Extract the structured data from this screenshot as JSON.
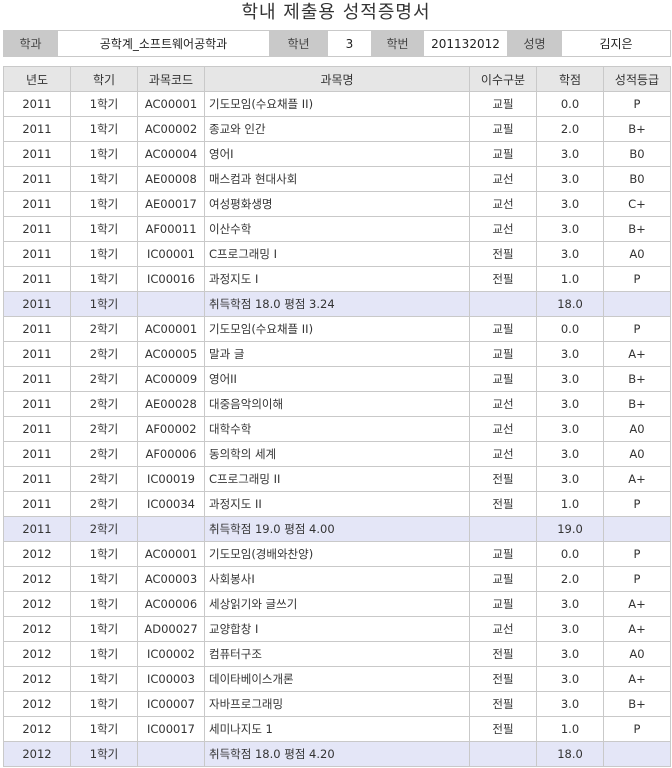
{
  "title": "학내 제출용 성적증명서",
  "info": {
    "dept_label": "학과",
    "dept": "공학계_소프트웨어공학과",
    "year_label": "학년",
    "year": "3",
    "id_label": "학번",
    "id": "201132012",
    "name_label": "성명",
    "name": "김지은"
  },
  "headers": [
    "년도",
    "학기",
    "과목코드",
    "과목명",
    "이수구분",
    "학점",
    "성적등급"
  ],
  "rows": [
    {
      "year": "2011",
      "term": "1학기",
      "code": "AC00001",
      "name": "기도모임(수요채플 II)",
      "type": "교필",
      "credit": "0.0",
      "grade": "P"
    },
    {
      "year": "2011",
      "term": "1학기",
      "code": "AC00002",
      "name": "종교와 인간",
      "type": "교필",
      "credit": "2.0",
      "grade": "B+"
    },
    {
      "year": "2011",
      "term": "1학기",
      "code": "AC00004",
      "name": "영어I",
      "type": "교필",
      "credit": "3.0",
      "grade": "B0"
    },
    {
      "year": "2011",
      "term": "1학기",
      "code": "AE00008",
      "name": "매스컴과 현대사회",
      "type": "교선",
      "credit": "3.0",
      "grade": "B0"
    },
    {
      "year": "2011",
      "term": "1학기",
      "code": "AE00017",
      "name": "여성평화생명",
      "type": "교선",
      "credit": "3.0",
      "grade": "C+"
    },
    {
      "year": "2011",
      "term": "1학기",
      "code": "AF00011",
      "name": "이산수학",
      "type": "교선",
      "credit": "3.0",
      "grade": "B+"
    },
    {
      "year": "2011",
      "term": "1학기",
      "code": "IC00001",
      "name": "C프로그래밍 I",
      "type": "전필",
      "credit": "3.0",
      "grade": "A0"
    },
    {
      "year": "2011",
      "term": "1학기",
      "code": "IC00016",
      "name": "과정지도 I",
      "type": "전필",
      "credit": "1.0",
      "grade": "P"
    },
    {
      "summary": true,
      "year": "2011",
      "term": "1학기",
      "code": "",
      "name": "취득학점 18.0 평점 3.24",
      "type": "",
      "credit": "18.0",
      "grade": ""
    },
    {
      "year": "2011",
      "term": "2학기",
      "code": "AC00001",
      "name": "기도모임(수요채플 II)",
      "type": "교필",
      "credit": "0.0",
      "grade": "P"
    },
    {
      "year": "2011",
      "term": "2학기",
      "code": "AC00005",
      "name": "말과 글",
      "type": "교필",
      "credit": "3.0",
      "grade": "A+"
    },
    {
      "year": "2011",
      "term": "2학기",
      "code": "AC00009",
      "name": "영어II",
      "type": "교필",
      "credit": "3.0",
      "grade": "B+"
    },
    {
      "year": "2011",
      "term": "2학기",
      "code": "AE00028",
      "name": "대중음악의이해",
      "type": "교선",
      "credit": "3.0",
      "grade": "B+"
    },
    {
      "year": "2011",
      "term": "2학기",
      "code": "AF00002",
      "name": "대학수학",
      "type": "교선",
      "credit": "3.0",
      "grade": "A0"
    },
    {
      "year": "2011",
      "term": "2학기",
      "code": "AF00006",
      "name": "동의학의 세계",
      "type": "교선",
      "credit": "3.0",
      "grade": "A0"
    },
    {
      "year": "2011",
      "term": "2학기",
      "code": "IC00019",
      "name": "C프로그래밍 II",
      "type": "전필",
      "credit": "3.0",
      "grade": "A+"
    },
    {
      "year": "2011",
      "term": "2학기",
      "code": "IC00034",
      "name": "과정지도 II",
      "type": "전필",
      "credit": "1.0",
      "grade": "P"
    },
    {
      "summary": true,
      "year": "2011",
      "term": "2학기",
      "code": "",
      "name": "취득학점 19.0 평점 4.00",
      "type": "",
      "credit": "19.0",
      "grade": ""
    },
    {
      "year": "2012",
      "term": "1학기",
      "code": "AC00001",
      "name": "기도모임(경배와찬양)",
      "type": "교필",
      "credit": "0.0",
      "grade": "P"
    },
    {
      "year": "2012",
      "term": "1학기",
      "code": "AC00003",
      "name": "사회봉사I",
      "type": "교필",
      "credit": "2.0",
      "grade": "P"
    },
    {
      "year": "2012",
      "term": "1학기",
      "code": "AC00006",
      "name": "세상읽기와 글쓰기",
      "type": "교필",
      "credit": "3.0",
      "grade": "A+"
    },
    {
      "year": "2012",
      "term": "1학기",
      "code": "AD00027",
      "name": "교양합창 I",
      "type": "교선",
      "credit": "3.0",
      "grade": "A+"
    },
    {
      "year": "2012",
      "term": "1학기",
      "code": "IC00002",
      "name": "컴퓨터구조",
      "type": "전필",
      "credit": "3.0",
      "grade": "A0"
    },
    {
      "year": "2012",
      "term": "1학기",
      "code": "IC00003",
      "name": "데이타베이스개론",
      "type": "전필",
      "credit": "3.0",
      "grade": "A+"
    },
    {
      "year": "2012",
      "term": "1학기",
      "code": "IC00007",
      "name": "자바프로그래밍",
      "type": "전필",
      "credit": "3.0",
      "grade": "B+"
    },
    {
      "year": "2012",
      "term": "1학기",
      "code": "IC00017",
      "name": "세미나지도 1",
      "type": "전필",
      "credit": "1.0",
      "grade": "P"
    },
    {
      "summary": true,
      "year": "2012",
      "term": "1학기",
      "code": "",
      "name": "취득학점 18.0 평점 4.20",
      "type": "",
      "credit": "18.0",
      "grade": ""
    }
  ]
}
